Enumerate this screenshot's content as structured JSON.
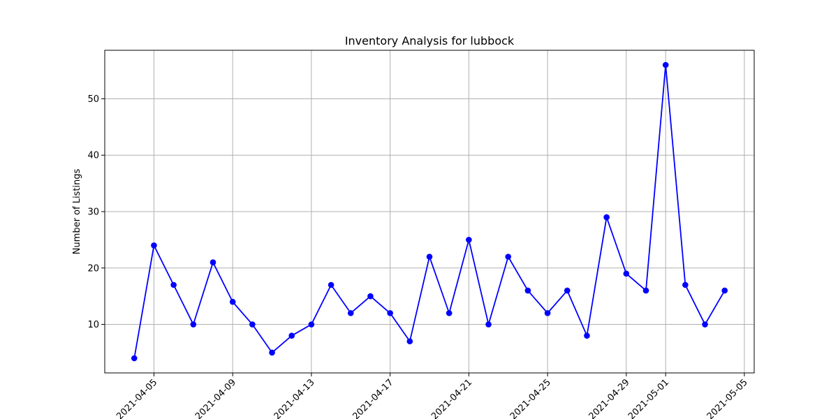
{
  "chart_data": {
    "type": "line",
    "title": "Inventory Analysis for lubbock",
    "xlabel": "",
    "ylabel": "Number of Listings",
    "grid": true,
    "color": "#0000ff",
    "x": [
      "2021-04-04",
      "2021-04-05",
      "2021-04-06",
      "2021-04-07",
      "2021-04-08",
      "2021-04-09",
      "2021-04-10",
      "2021-04-11",
      "2021-04-12",
      "2021-04-13",
      "2021-04-14",
      "2021-04-15",
      "2021-04-16",
      "2021-04-17",
      "2021-04-18",
      "2021-04-19",
      "2021-04-20",
      "2021-04-21",
      "2021-04-22",
      "2021-04-23",
      "2021-04-24",
      "2021-04-25",
      "2021-04-26",
      "2021-04-27",
      "2021-04-28",
      "2021-04-29",
      "2021-04-30",
      "2021-05-01",
      "2021-05-02",
      "2021-05-03",
      "2021-05-04"
    ],
    "values": [
      4,
      24,
      17,
      10,
      21,
      14,
      10,
      5,
      8,
      10,
      17,
      12,
      15,
      12,
      7,
      22,
      12,
      25,
      10,
      22,
      16,
      12,
      16,
      8,
      29,
      19,
      16,
      56,
      17,
      10,
      16
    ],
    "xticks": [
      "2021-04-05",
      "2021-04-09",
      "2021-04-13",
      "2021-04-17",
      "2021-04-21",
      "2021-04-25",
      "2021-04-29",
      "2021-05-01",
      "2021-05-05"
    ],
    "yticks": [
      10,
      20,
      30,
      40,
      50
    ],
    "ylim": [
      1.4,
      58.6
    ],
    "xlim": [
      "2021-04-02T12:00",
      "2021-05-05T12:00"
    ]
  }
}
